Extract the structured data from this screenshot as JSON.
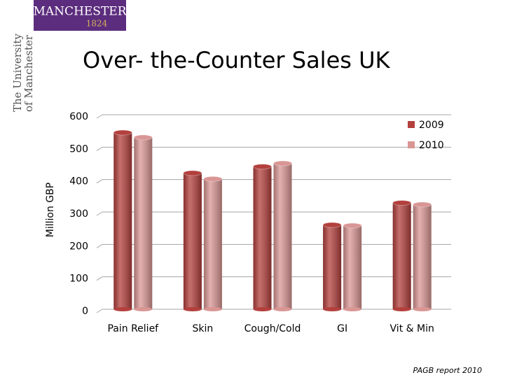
{
  "logo": {
    "name": "MANCHESTER",
    "year": "1824"
  },
  "side_text": [
    "The University",
    "of Manchester"
  ],
  "source": "PAGB report 2010",
  "chart_data": {
    "type": "bar",
    "title": "Over- the-Counter Sales UK",
    "y_label": "Million GBP",
    "categories": [
      "Pain Relief",
      "Skin",
      "Cough/Cold",
      "GI",
      "Vit & Min"
    ],
    "series": [
      {
        "name": "2009",
        "color": "#b3403d",
        "values": [
          545,
          420,
          440,
          260,
          328
        ]
      },
      {
        "name": "2010",
        "color": "#d99694",
        "values": [
          530,
          402,
          450,
          258,
          323
        ]
      }
    ],
    "ylim": [
      0,
      600
    ],
    "yticks": [
      0,
      100,
      200,
      300,
      400,
      500,
      600
    ],
    "grid": true,
    "legend": "top-right"
  }
}
